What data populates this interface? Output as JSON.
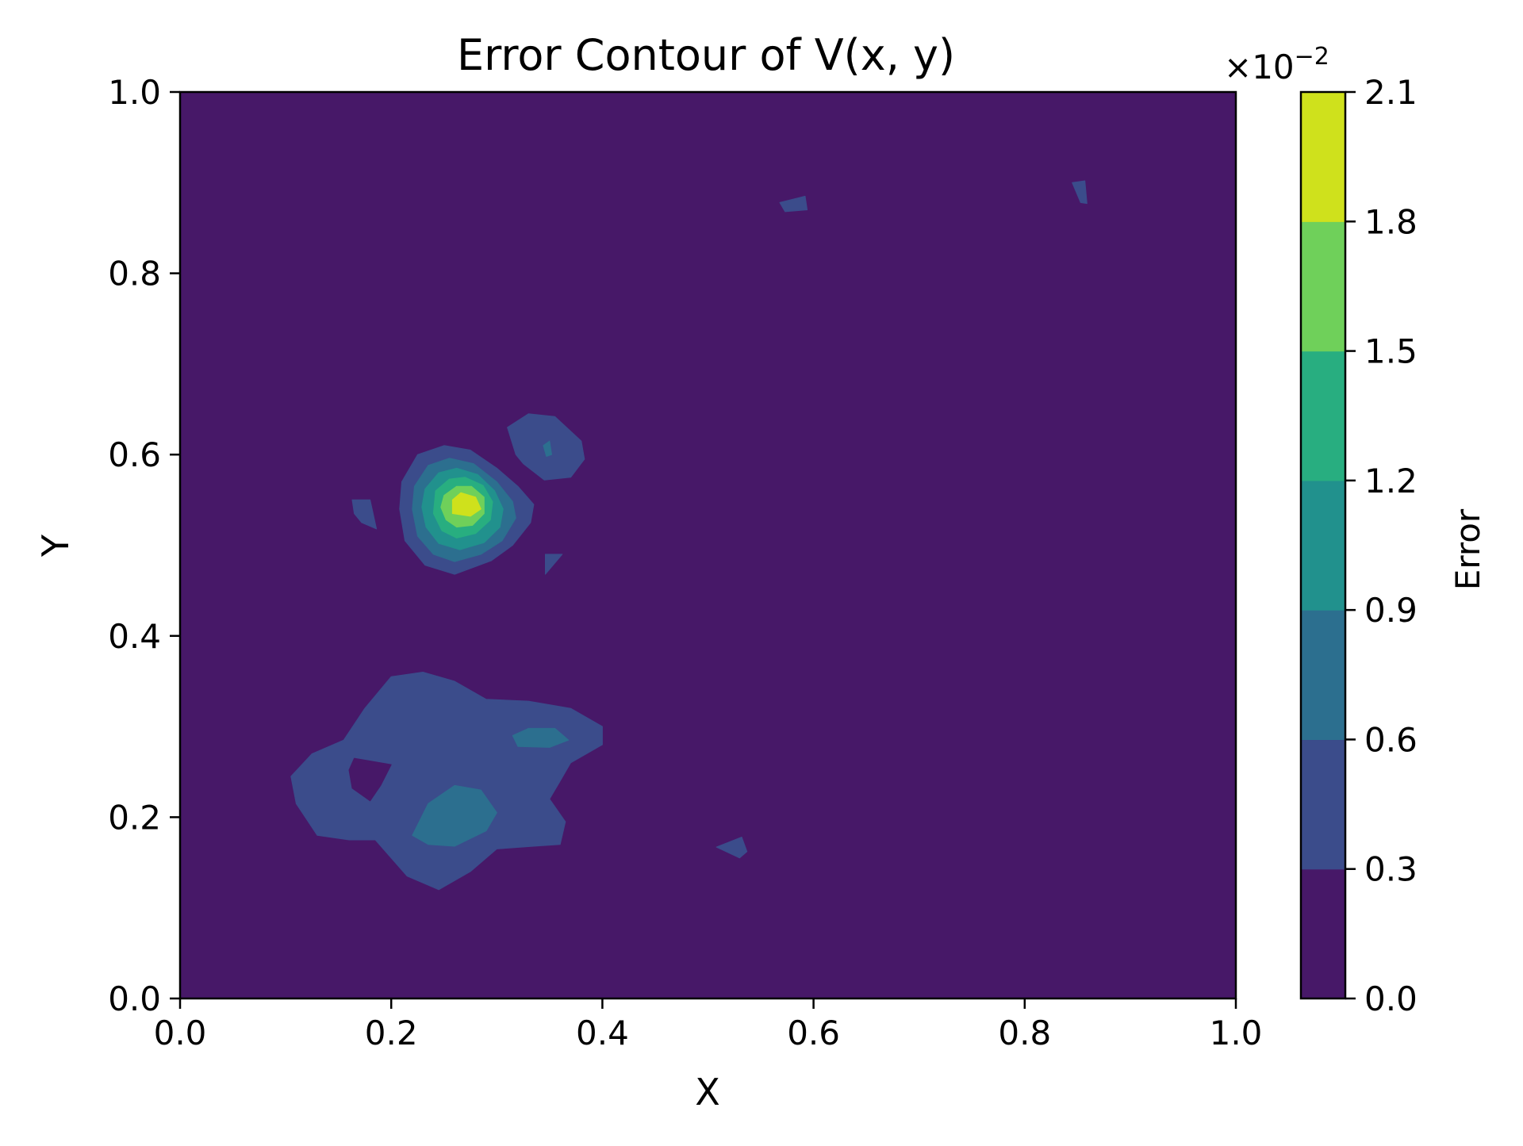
{
  "chart_data": {
    "type": "heatmap",
    "subtype": "filled-contour",
    "title": "Error Contour of V(x, y)",
    "xlabel": "X",
    "ylabel": "Y",
    "xlim": [
      0.0,
      1.0
    ],
    "ylim": [
      0.0,
      1.0
    ],
    "x_ticks": [
      "0.0",
      "0.2",
      "0.4",
      "0.6",
      "0.8",
      "1.0"
    ],
    "y_ticks": [
      "0.0",
      "0.2",
      "0.4",
      "0.6",
      "0.8",
      "1.0"
    ],
    "grid": false,
    "colorbar": {
      "label": "Error",
      "scale_text": "×10",
      "scale_exponent": "−2",
      "multiplier": 0.01,
      "levels": [
        0.0,
        0.3,
        0.6,
        0.9,
        1.2,
        1.5,
        1.8,
        2.1
      ],
      "tick_labels": [
        "0.0",
        "0.3",
        "0.6",
        "0.9",
        "1.2",
        "1.5",
        "1.8",
        "2.1"
      ],
      "colors": [
        "#471868",
        "#3b4c8b",
        "#2c6f8f",
        "#21918d",
        "#28ae80",
        "#6fd05a",
        "#cfe11c"
      ]
    },
    "regions": [
      {
        "level_index": 1,
        "points": [
          [
            0.105,
            0.245
          ],
          [
            0.125,
            0.27
          ],
          [
            0.155,
            0.285
          ],
          [
            0.175,
            0.32
          ],
          [
            0.2,
            0.355
          ],
          [
            0.23,
            0.36
          ],
          [
            0.26,
            0.35
          ],
          [
            0.29,
            0.33
          ],
          [
            0.33,
            0.328
          ],
          [
            0.37,
            0.32
          ],
          [
            0.4,
            0.3
          ],
          [
            0.4,
            0.28
          ],
          [
            0.37,
            0.26
          ],
          [
            0.36,
            0.24
          ],
          [
            0.35,
            0.22
          ],
          [
            0.365,
            0.195
          ],
          [
            0.36,
            0.17
          ],
          [
            0.335,
            0.168
          ],
          [
            0.3,
            0.165
          ],
          [
            0.275,
            0.14
          ],
          [
            0.245,
            0.12
          ],
          [
            0.215,
            0.135
          ],
          [
            0.185,
            0.175
          ],
          [
            0.16,
            0.175
          ],
          [
            0.13,
            0.18
          ],
          [
            0.11,
            0.215
          ]
        ]
      },
      {
        "level_index": 0,
        "points": [
          [
            0.165,
            0.265
          ],
          [
            0.2,
            0.258
          ],
          [
            0.19,
            0.235
          ],
          [
            0.18,
            0.218
          ],
          [
            0.163,
            0.232
          ],
          [
            0.16,
            0.252
          ]
        ]
      },
      {
        "level_index": 2,
        "points": [
          [
            0.22,
            0.18
          ],
          [
            0.235,
            0.215
          ],
          [
            0.26,
            0.235
          ],
          [
            0.285,
            0.23
          ],
          [
            0.3,
            0.205
          ],
          [
            0.29,
            0.185
          ],
          [
            0.26,
            0.168
          ],
          [
            0.235,
            0.17
          ]
        ]
      },
      {
        "level_index": 2,
        "points": [
          [
            0.315,
            0.29
          ],
          [
            0.33,
            0.298
          ],
          [
            0.355,
            0.298
          ],
          [
            0.368,
            0.285
          ],
          [
            0.35,
            0.277
          ],
          [
            0.32,
            0.278
          ]
        ]
      },
      {
        "level_index": 1,
        "points": [
          [
            0.31,
            0.63
          ],
          [
            0.33,
            0.645
          ],
          [
            0.355,
            0.642
          ],
          [
            0.38,
            0.615
          ],
          [
            0.383,
            0.595
          ],
          [
            0.37,
            0.575
          ],
          [
            0.345,
            0.572
          ],
          [
            0.325,
            0.59
          ],
          [
            0.318,
            0.6
          ]
        ]
      },
      {
        "level_index": 2,
        "points": [
          [
            0.344,
            0.61
          ],
          [
            0.35,
            0.615
          ],
          [
            0.352,
            0.6
          ],
          [
            0.347,
            0.598
          ]
        ]
      },
      {
        "level_index": 1,
        "points": [
          [
            0.21,
            0.57
          ],
          [
            0.225,
            0.6
          ],
          [
            0.25,
            0.61
          ],
          [
            0.275,
            0.605
          ],
          [
            0.3,
            0.585
          ],
          [
            0.32,
            0.565
          ],
          [
            0.335,
            0.545
          ],
          [
            0.332,
            0.525
          ],
          [
            0.315,
            0.5
          ],
          [
            0.295,
            0.483
          ],
          [
            0.26,
            0.468
          ],
          [
            0.232,
            0.478
          ],
          [
            0.213,
            0.505
          ],
          [
            0.208,
            0.54
          ]
        ]
      },
      {
        "level_index": 2,
        "points": [
          [
            0.222,
            0.565
          ],
          [
            0.235,
            0.588
          ],
          [
            0.255,
            0.596
          ],
          [
            0.278,
            0.59
          ],
          [
            0.3,
            0.57
          ],
          [
            0.315,
            0.548
          ],
          [
            0.318,
            0.53
          ],
          [
            0.305,
            0.505
          ],
          [
            0.285,
            0.49
          ],
          [
            0.26,
            0.482
          ],
          [
            0.24,
            0.49
          ],
          [
            0.225,
            0.51
          ],
          [
            0.22,
            0.54
          ]
        ]
      },
      {
        "level_index": 3,
        "points": [
          [
            0.232,
            0.562
          ],
          [
            0.245,
            0.58
          ],
          [
            0.262,
            0.585
          ],
          [
            0.282,
            0.578
          ],
          [
            0.298,
            0.56
          ],
          [
            0.306,
            0.54
          ],
          [
            0.303,
            0.52
          ],
          [
            0.288,
            0.503
          ],
          [
            0.265,
            0.495
          ],
          [
            0.245,
            0.502
          ],
          [
            0.233,
            0.52
          ],
          [
            0.229,
            0.542
          ]
        ]
      },
      {
        "level_index": 4,
        "points": [
          [
            0.242,
            0.56
          ],
          [
            0.255,
            0.573
          ],
          [
            0.27,
            0.575
          ],
          [
            0.287,
            0.566
          ],
          [
            0.296,
            0.548
          ],
          [
            0.294,
            0.528
          ],
          [
            0.28,
            0.513
          ],
          [
            0.262,
            0.508
          ],
          [
            0.248,
            0.516
          ],
          [
            0.24,
            0.535
          ]
        ]
      },
      {
        "level_index": 5,
        "points": [
          [
            0.25,
            0.555
          ],
          [
            0.262,
            0.565
          ],
          [
            0.276,
            0.565
          ],
          [
            0.288,
            0.553
          ],
          [
            0.288,
            0.535
          ],
          [
            0.277,
            0.522
          ],
          [
            0.262,
            0.52
          ],
          [
            0.252,
            0.528
          ],
          [
            0.247,
            0.542
          ]
        ]
      },
      {
        "level_index": 6,
        "points": [
          [
            0.258,
            0.55
          ],
          [
            0.266,
            0.558
          ],
          [
            0.28,
            0.553
          ],
          [
            0.285,
            0.54
          ],
          [
            0.275,
            0.532
          ],
          [
            0.258,
            0.535
          ]
        ]
      },
      {
        "level_index": 1,
        "points": [
          [
            0.163,
            0.55
          ],
          [
            0.18,
            0.55
          ],
          [
            0.186,
            0.518
          ],
          [
            0.172,
            0.525
          ],
          [
            0.165,
            0.535
          ]
        ]
      },
      {
        "level_index": 1,
        "points": [
          [
            0.346,
            0.49
          ],
          [
            0.362,
            0.49
          ],
          [
            0.346,
            0.468
          ]
        ]
      },
      {
        "level_index": 1,
        "points": [
          [
            0.508,
            0.167
          ],
          [
            0.532,
            0.178
          ],
          [
            0.537,
            0.162
          ],
          [
            0.53,
            0.155
          ]
        ]
      },
      {
        "level_index": 1,
        "points": [
          [
            0.568,
            0.878
          ],
          [
            0.592,
            0.885
          ],
          [
            0.594,
            0.87
          ],
          [
            0.573,
            0.868
          ]
        ]
      },
      {
        "level_index": 1,
        "points": [
          [
            0.845,
            0.9
          ],
          [
            0.857,
            0.902
          ],
          [
            0.859,
            0.877
          ],
          [
            0.853,
            0.878
          ]
        ]
      }
    ]
  }
}
